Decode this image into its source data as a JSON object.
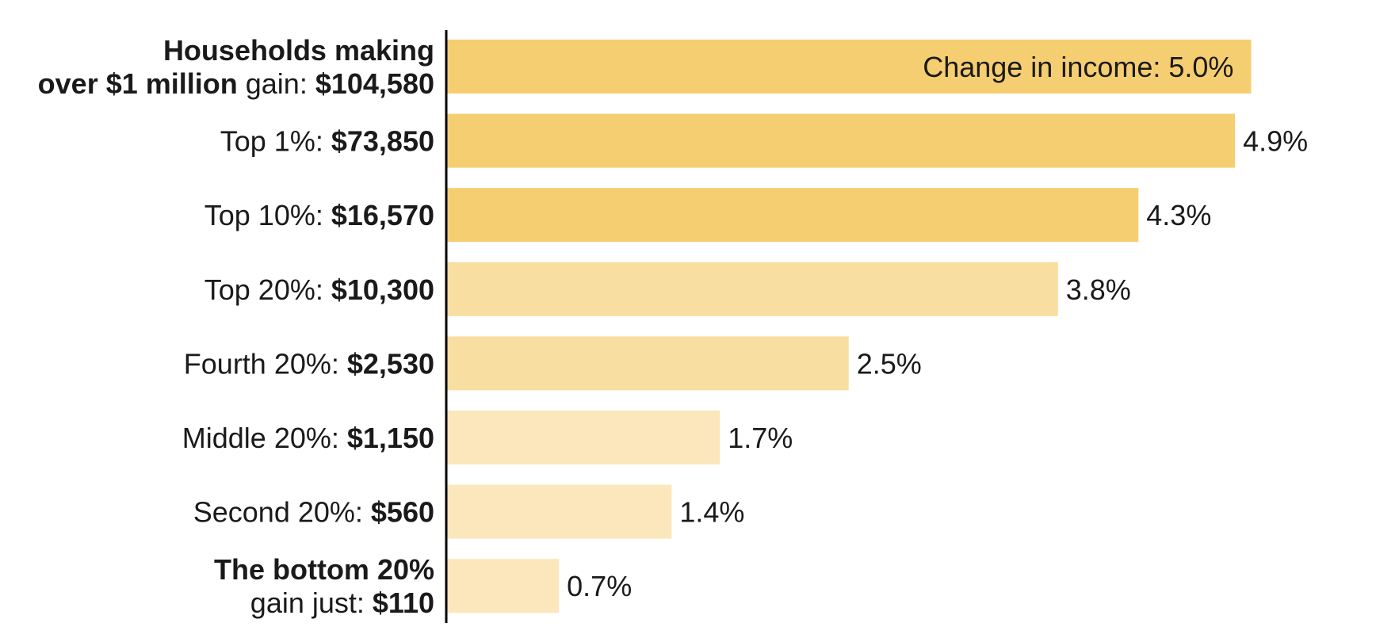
{
  "chart_data": {
    "type": "bar",
    "orientation": "horizontal",
    "grid": false,
    "xlim": [
      0,
      5.5
    ],
    "categories": [
      "Households making over $1 million gain: $104,580",
      "Top 1%: $73,850",
      "Top 10%: $16,570",
      "Top 20%: $10,300",
      "Fourth 20%: $2,530",
      "Middle 20%: $1,150",
      "Second 20%: $560",
      "The bottom 20% gain just: $110"
    ],
    "values": [
      5.0,
      4.9,
      4.3,
      3.8,
      2.5,
      1.7,
      1.4,
      0.7
    ],
    "value_labels": [
      "Change in income: 5.0%",
      "4.9%",
      "4.3%",
      "3.8%",
      "2.5%",
      "1.7%",
      "1.4%",
      "0.7%"
    ],
    "label_parts": [
      [
        [
          {
            "t": "Households making",
            "b": true
          }
        ],
        [
          {
            "t": "over $1 million",
            "b": true
          },
          {
            "t": " gain: ",
            "b": false
          },
          {
            "t": "$104,580",
            "b": true
          }
        ]
      ],
      [
        [
          {
            "t": "Top 1%: ",
            "b": false
          },
          {
            "t": "$73,850",
            "b": true
          }
        ]
      ],
      [
        [
          {
            "t": "Top 10%: ",
            "b": false
          },
          {
            "t": "$16,570",
            "b": true
          }
        ]
      ],
      [
        [
          {
            "t": "Top 20%: ",
            "b": false
          },
          {
            "t": "$10,300",
            "b": true
          }
        ]
      ],
      [
        [
          {
            "t": "Fourth 20%: ",
            "b": false
          },
          {
            "t": "$2,530",
            "b": true
          }
        ]
      ],
      [
        [
          {
            "t": "Middle 20%: ",
            "b": false
          },
          {
            "t": "$1,150",
            "b": true
          }
        ]
      ],
      [
        [
          {
            "t": "Second 20%: ",
            "b": false
          },
          {
            "t": "$560",
            "b": true
          }
        ]
      ],
      [
        [
          {
            "t": "The bottom 20%",
            "b": true
          }
        ],
        [
          {
            "t": "gain just: ",
            "b": false
          },
          {
            "t": "$110",
            "b": true
          }
        ]
      ]
    ],
    "bar_colors": [
      "#f5ce71",
      "#f5ce71",
      "#f5ce71",
      "#f9dea1",
      "#f9dea1",
      "#fbe7bb",
      "#fbe7bb",
      "#fbe7bb"
    ],
    "axis_color": "#000000",
    "title": "",
    "xlabel": "",
    "ylabel": ""
  }
}
